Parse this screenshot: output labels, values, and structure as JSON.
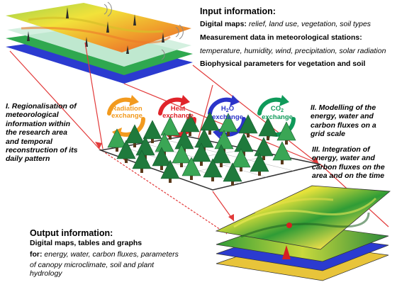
{
  "input": {
    "heading": "Input information:",
    "lines": [
      {
        "bold": "Digital maps:",
        "italic": " relief, land use, vegetation, soil types"
      },
      {
        "bold": "Measurement data in meteorological stations:",
        "italic": ""
      },
      {
        "bold": "",
        "italic": "temperature, humidity, wind, precipitation, solar radiation"
      },
      {
        "bold": "Biophysical parameters for vegetation and soil",
        "italic": ""
      }
    ]
  },
  "step1": [
    "I. Regionalisation of",
    "meteorological",
    "information within",
    "the research area",
    "and temporal",
    "reconstruction of its",
    "daily pattern"
  ],
  "step2": [
    "II. Modelling of the",
    "energy, water and",
    "carbon fluxes on a",
    "grid scale"
  ],
  "step3": [
    "III. Integration of",
    "energy, water and",
    "carbon fluxes on the",
    "area and on the time"
  ],
  "exchange": {
    "radiation": {
      "line1": "Radiation",
      "line2": "exchange",
      "color": "#f29a1e"
    },
    "heat": {
      "line1": "Heat",
      "line2": "exchange",
      "color": "#e0242a"
    },
    "h2o": {
      "base": "H",
      "sub": "2",
      "tail": "O",
      "line2": "exchange",
      "color": "#2b34c9"
    },
    "co2": {
      "base": "CO",
      "sub": "2",
      "tail": "",
      "line2": "exchange",
      "color": "#0f9a5a"
    }
  },
  "output": {
    "heading": "Output information:",
    "line1": "Digital maps, tables and graphs",
    "for_label": "for:",
    "for_text": " energy, water, carbon fluxes, parameters",
    "line3": "of canopy microclimate, soil and plant",
    "line4": "hydrology"
  },
  "colors": {
    "arrow": "#e23a3a",
    "tree_dark": "#1f7a3c",
    "tree_light": "#3aa655",
    "layer_blue": "#2b3bd0",
    "layer_green": "#2fa84f"
  }
}
